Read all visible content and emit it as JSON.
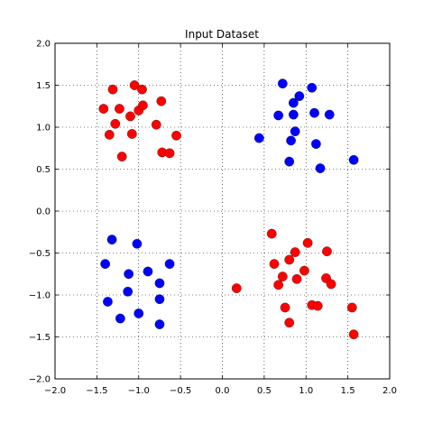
{
  "chart_data": {
    "type": "scatter",
    "title": "Input Dataset",
    "xlabel": "",
    "ylabel": "",
    "xlim": [
      -2.0,
      2.0
    ],
    "ylim": [
      -2.0,
      2.0
    ],
    "xticks": [
      "−2.0",
      "−1.5",
      "−1.0",
      "−0.5",
      "0.0",
      "0.5",
      "1.0",
      "1.5",
      "2.0"
    ],
    "yticks": [
      "−2.0",
      "−1.5",
      "−1.0",
      "−0.5",
      "0.0",
      "0.5",
      "1.0",
      "1.5",
      "2.0"
    ],
    "grid": true,
    "legend": "none",
    "series": [
      {
        "color": "#ff0000",
        "x": [
          -1.31,
          -1.05,
          -0.96,
          -1.42,
          -1.23,
          -0.73,
          -1.1,
          -1.0,
          -0.95,
          -1.28,
          -0.79,
          -1.35,
          -1.08,
          -0.55,
          -0.72,
          -0.63,
          -1.2,
          0.59,
          1.02,
          0.87,
          1.25,
          0.62,
          0.8,
          0.72,
          0.98,
          0.67,
          0.89,
          1.24,
          1.3,
          0.17,
          1.07,
          1.14,
          0.75,
          1.55,
          0.8,
          1.57
        ],
        "y": [
          1.45,
          1.5,
          1.45,
          1.22,
          1.22,
          1.31,
          1.13,
          1.2,
          1.26,
          1.04,
          1.03,
          0.91,
          0.92,
          0.9,
          0.7,
          0.69,
          0.65,
          -0.27,
          -0.38,
          -0.49,
          -0.48,
          -0.63,
          -0.58,
          -0.78,
          -0.71,
          -0.88,
          -0.81,
          -0.8,
          -0.87,
          -0.92,
          -1.12,
          -1.13,
          -1.15,
          -1.15,
          -1.33,
          -1.47
        ]
      },
      {
        "color": "#0000ff",
        "x": [
          0.72,
          0.92,
          1.07,
          0.85,
          0.67,
          0.85,
          1.1,
          1.28,
          0.87,
          0.44,
          0.82,
          1.12,
          0.8,
          1.17,
          1.57,
          -1.32,
          -1.02,
          -1.4,
          -0.63,
          -1.12,
          -0.89,
          -0.75,
          -1.13,
          -1.37,
          -0.75,
          -1.0,
          -1.22,
          -0.75
        ],
        "y": [
          1.52,
          1.37,
          1.47,
          1.29,
          1.14,
          1.15,
          1.17,
          1.15,
          0.95,
          0.87,
          0.84,
          0.8,
          0.59,
          0.51,
          0.61,
          -0.34,
          -0.39,
          -0.63,
          -0.63,
          -0.75,
          -0.72,
          -0.86,
          -0.96,
          -1.08,
          -1.05,
          -1.22,
          -1.28,
          -1.35
        ]
      }
    ]
  }
}
